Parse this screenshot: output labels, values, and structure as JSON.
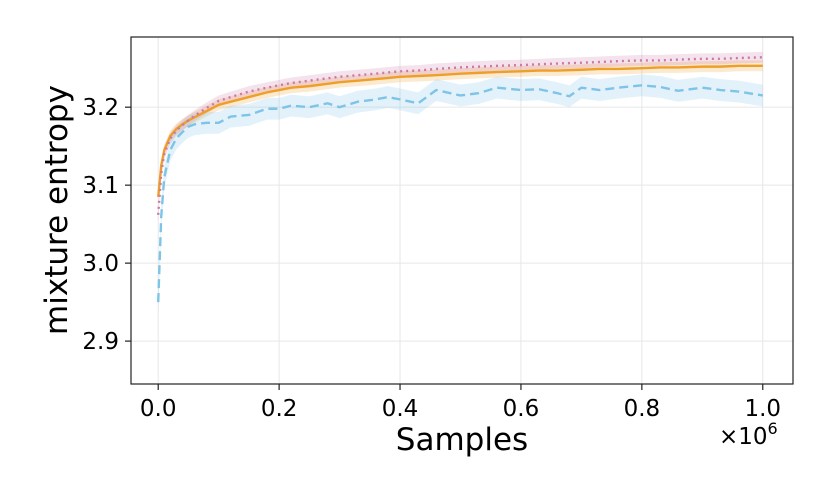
{
  "chart_data": {
    "type": "line",
    "xlabel": "Samples",
    "ylabel": "mixture entropy",
    "x_offset_label": "×10",
    "x_offset_exp": "6",
    "xlim": [
      -0.045,
      1.05
    ],
    "ylim": [
      2.845,
      3.29
    ],
    "xticks": [
      0.0,
      0.2,
      0.4,
      0.6,
      0.8,
      1.0
    ],
    "xtick_labels": [
      "0.0",
      "0.2",
      "0.4",
      "0.6",
      "0.8",
      "1.0"
    ],
    "yticks": [
      2.9,
      3.0,
      3.1,
      3.2
    ],
    "ytick_labels": [
      "2.9",
      "3.0",
      "3.1",
      "3.2"
    ],
    "grid": true,
    "legend": "none",
    "series": [
      {
        "color": "#ee9f2a",
        "linestyle": "solid",
        "x": [
          0.0,
          0.005,
          0.01,
          0.02,
          0.03,
          0.04,
          0.05,
          0.06,
          0.08,
          0.1,
          0.12,
          0.15,
          0.18,
          0.2,
          0.22,
          0.25,
          0.28,
          0.3,
          0.33,
          0.36,
          0.4,
          0.43,
          0.46,
          0.5,
          0.53,
          0.56,
          0.6,
          0.63,
          0.66,
          0.7,
          0.73,
          0.76,
          0.8,
          0.83,
          0.86,
          0.9,
          0.93,
          0.96,
          1.0
        ],
        "y": [
          3.085,
          3.125,
          3.145,
          3.163,
          3.172,
          3.178,
          3.183,
          3.187,
          3.195,
          3.203,
          3.207,
          3.213,
          3.219,
          3.222,
          3.225,
          3.227,
          3.23,
          3.232,
          3.234,
          3.236,
          3.239,
          3.24,
          3.241,
          3.243,
          3.244,
          3.245,
          3.246,
          3.247,
          3.247,
          3.248,
          3.249,
          3.249,
          3.25,
          3.251,
          3.251,
          3.252,
          3.252,
          3.253,
          3.253
        ],
        "band": 0.007
      },
      {
        "color": "#cc79a7",
        "linestyle": "dotted",
        "x": [
          0.0,
          0.005,
          0.01,
          0.02,
          0.03,
          0.04,
          0.05,
          0.06,
          0.08,
          0.1,
          0.12,
          0.15,
          0.18,
          0.2,
          0.22,
          0.25,
          0.28,
          0.3,
          0.33,
          0.36,
          0.4,
          0.43,
          0.46,
          0.5,
          0.53,
          0.56,
          0.6,
          0.63,
          0.66,
          0.7,
          0.73,
          0.76,
          0.8,
          0.83,
          0.86,
          0.9,
          0.93,
          0.96,
          1.0
        ],
        "y": [
          3.062,
          3.115,
          3.14,
          3.16,
          3.17,
          3.177,
          3.183,
          3.189,
          3.199,
          3.208,
          3.213,
          3.22,
          3.225,
          3.228,
          3.231,
          3.234,
          3.237,
          3.239,
          3.241,
          3.243,
          3.246,
          3.247,
          3.249,
          3.251,
          3.252,
          3.253,
          3.254,
          3.255,
          3.256,
          3.257,
          3.258,
          3.259,
          3.26,
          3.26,
          3.261,
          3.262,
          3.262,
          3.263,
          3.264
        ],
        "band": 0.007
      },
      {
        "color": "#7ec4e6",
        "linestyle": "dashed",
        "x": [
          0.0,
          0.005,
          0.01,
          0.02,
          0.03,
          0.04,
          0.05,
          0.06,
          0.08,
          0.1,
          0.12,
          0.15,
          0.18,
          0.2,
          0.22,
          0.25,
          0.28,
          0.3,
          0.33,
          0.36,
          0.38,
          0.4,
          0.43,
          0.46,
          0.5,
          0.53,
          0.56,
          0.6,
          0.63,
          0.66,
          0.68,
          0.7,
          0.73,
          0.76,
          0.8,
          0.83,
          0.86,
          0.9,
          0.93,
          0.96,
          1.0
        ],
        "y": [
          2.95,
          3.06,
          3.11,
          3.145,
          3.16,
          3.168,
          3.175,
          3.178,
          3.18,
          3.18,
          3.188,
          3.19,
          3.198,
          3.198,
          3.202,
          3.2,
          3.205,
          3.2,
          3.207,
          3.21,
          3.213,
          3.21,
          3.205,
          3.222,
          3.215,
          3.218,
          3.225,
          3.222,
          3.223,
          3.218,
          3.214,
          3.225,
          3.222,
          3.225,
          3.228,
          3.226,
          3.221,
          3.225,
          3.222,
          3.22,
          3.215
        ],
        "band": 0.014
      }
    ]
  }
}
